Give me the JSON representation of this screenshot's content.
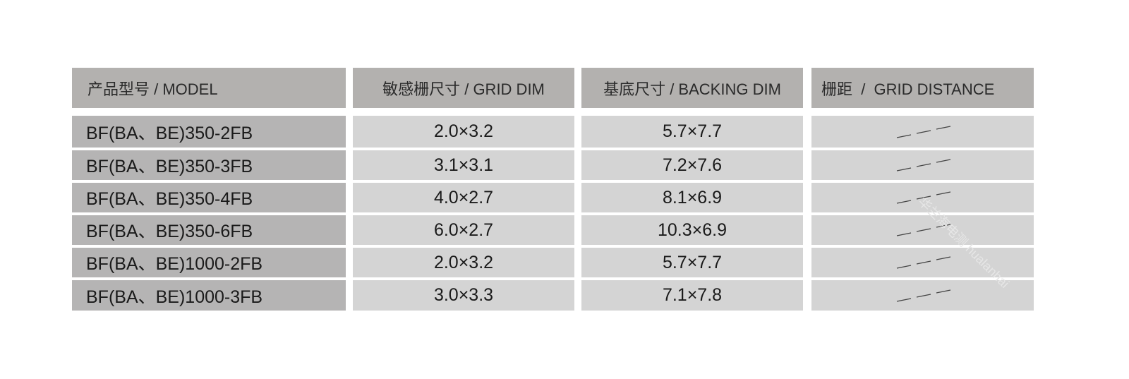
{
  "headers": {
    "model": "产品型号 / MODEL",
    "grid_dim": "敏感栅尺寸 / GRID DIM",
    "backing_dim": "基底尺寸 / BACKING DIM",
    "grid_distance": "栅距  /  GRID DISTANCE"
  },
  "rows": [
    {
      "model": "BF(BA、BE)350-2FB",
      "grid_dim": "2.0×3.2",
      "backing_dim": "5.7×7.7",
      "grid_distance": "dash-icon"
    },
    {
      "model": "BF(BA、BE)350-3FB",
      "grid_dim": "3.1×3.1",
      "backing_dim": "7.2×7.6",
      "grid_distance": "dash-icon"
    },
    {
      "model": "BF(BA、BE)350-4FB",
      "grid_dim": "4.0×2.7",
      "backing_dim": "8.1×6.9",
      "grid_distance": "dash-icon"
    },
    {
      "model": "BF(BA、BE)350-6FB",
      "grid_dim": "6.0×2.7",
      "backing_dim": "10.3×6.9",
      "grid_distance": "dash-icon"
    },
    {
      "model": "BF(BA、BE)1000-2FB",
      "grid_dim": "2.0×3.2",
      "backing_dim": "5.7×7.7",
      "grid_distance": "dash-icon"
    },
    {
      "model": "BF(BA、BE)1000-3FB",
      "grid_dim": "3.0×3.3",
      "backing_dim": "7.1×7.8",
      "grid_distance": "dash-icon"
    }
  ],
  "watermark": "华兰海电测 hualanhai"
}
